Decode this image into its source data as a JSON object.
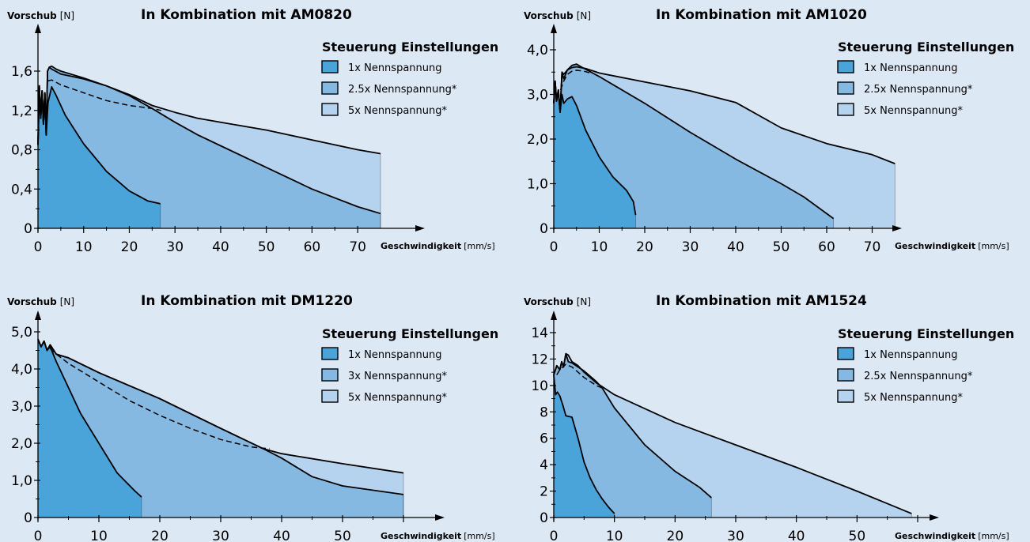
{
  "colors": {
    "background": "#dde8f5",
    "fill_1x": "#4aa3d9",
    "fill_mid": "#86b9e2",
    "fill_5x": "#b5d3ee",
    "line": "#000000"
  },
  "chart_data": [
    {
      "type": "area",
      "title": "In Kombination mit AM0820",
      "ylabel_bold": "Vorschub",
      "ylabel_unit": "[N]",
      "xlabel_bold": "Geschwindigkeit",
      "xlabel_unit": "[mm/s]",
      "xlim": [
        0,
        80
      ],
      "ylim": [
        0,
        2.0
      ],
      "xticks": [
        0,
        10,
        20,
        30,
        40,
        50,
        60,
        70
      ],
      "xtick_labels": [
        "0",
        "10",
        "20",
        "30",
        "40",
        "50",
        "60",
        "70"
      ],
      "yticks": [
        0,
        0.4,
        0.8,
        1.2,
        1.6
      ],
      "ytick_labels": [
        "0",
        "0,4",
        "0,8",
        "1,2",
        "1,6"
      ],
      "legend_title": "Steuerung Einstellungen",
      "legend_position": "top-right",
      "series": [
        {
          "name": "5x Nennspannung*",
          "style": "solid",
          "x": [
            0,
            0.3,
            0.6,
            0.9,
            1.2,
            1.5,
            1.8,
            2.1,
            2.5,
            3,
            5,
            10,
            15,
            20,
            25,
            30,
            35,
            40,
            50,
            60,
            70,
            75
          ],
          "y": [
            0.85,
            1.45,
            1.12,
            1.4,
            1.06,
            1.38,
            0.95,
            1.6,
            1.64,
            1.62,
            1.57,
            1.52,
            1.45,
            1.36,
            1.25,
            1.18,
            1.12,
            1.08,
            1.0,
            0.9,
            0.8,
            0.76
          ]
        },
        {
          "name": "2.5x Nennspannung*",
          "style": "solid",
          "x": [
            0,
            0.3,
            0.6,
            0.9,
            1.2,
            1.5,
            1.8,
            2.1,
            2.5,
            3,
            4,
            5,
            10,
            15,
            20,
            25,
            30,
            35,
            40,
            50,
            60,
            70,
            75
          ],
          "y": [
            0.85,
            1.45,
            1.12,
            1.4,
            1.06,
            1.38,
            0.95,
            1.6,
            1.64,
            1.65,
            1.62,
            1.6,
            1.53,
            1.45,
            1.35,
            1.22,
            1.08,
            0.95,
            0.84,
            0.62,
            0.4,
            0.22,
            0.15
          ]
        },
        {
          "name": "1x Nennspannung",
          "style": "solid",
          "x": [
            0,
            0.3,
            0.6,
            0.9,
            1.2,
            1.5,
            1.8,
            2.2,
            3,
            4,
            6,
            10,
            15,
            20,
            24,
            26.8
          ],
          "y": [
            0.85,
            1.45,
            1.12,
            1.4,
            1.06,
            1.38,
            0.95,
            1.28,
            1.44,
            1.35,
            1.15,
            0.86,
            0.58,
            0.38,
            0.28,
            0.25
          ]
        },
        {
          "name": "",
          "style": "dashed",
          "x": [
            2.2,
            3,
            5,
            10,
            15,
            20,
            25,
            27
          ],
          "y": [
            1.5,
            1.51,
            1.46,
            1.38,
            1.3,
            1.25,
            1.22,
            1.2
          ]
        }
      ]
    },
    {
      "type": "area",
      "title": "In Kombination mit AM1020",
      "ylabel_bold": "Vorschub",
      "ylabel_unit": "[N]",
      "xlabel_bold": "Geschwindigkeit",
      "xlabel_unit": "[mm/s]",
      "xlim": [
        0,
        75
      ],
      "ylim": [
        0,
        4.4
      ],
      "xticks": [
        0,
        10,
        20,
        30,
        40,
        50,
        60,
        70
      ],
      "xtick_labels": [
        "0",
        "10",
        "20",
        "30",
        "40",
        "50",
        "60",
        "70"
      ],
      "yticks": [
        0,
        1.0,
        2.0,
        3.0,
        4.0
      ],
      "ytick_labels": [
        "0",
        "1,0",
        "2,0",
        "3,0",
        "4,0"
      ],
      "legend_title": "Steuerung Einstellungen",
      "legend_position": "top-right",
      "series": [
        {
          "name": "5x Nennspannung*",
          "style": "solid",
          "x": [
            0,
            0.3,
            0.6,
            1,
            1.4,
            1.8,
            2.2,
            3,
            4,
            5,
            7,
            10,
            20,
            30,
            40,
            50,
            60,
            70,
            75
          ],
          "y": [
            2.8,
            3.3,
            2.85,
            3.1,
            2.6,
            3.5,
            3.45,
            3.55,
            3.6,
            3.62,
            3.58,
            3.48,
            3.28,
            3.08,
            2.82,
            2.25,
            1.9,
            1.65,
            1.45
          ]
        },
        {
          "name": "2.5x Nennspannung*",
          "style": "solid",
          "x": [
            0,
            0.3,
            0.6,
            1,
            1.4,
            1.8,
            2.2,
            3,
            4,
            5,
            6,
            10,
            20,
            30,
            40,
            50,
            55,
            61.5
          ],
          "y": [
            2.8,
            3.3,
            2.85,
            3.1,
            2.6,
            3.5,
            3.35,
            3.55,
            3.65,
            3.68,
            3.62,
            3.4,
            2.8,
            2.15,
            1.55,
            1.0,
            0.7,
            0.22
          ]
        },
        {
          "name": "1x Nennspannung",
          "style": "solid",
          "x": [
            0,
            0.3,
            0.6,
            1,
            1.4,
            1.8,
            2.2,
            3,
            4,
            5,
            7,
            10,
            13,
            16,
            17.5,
            18
          ],
          "y": [
            2.8,
            3.3,
            2.85,
            3.1,
            2.6,
            3.0,
            2.8,
            2.9,
            2.95,
            2.75,
            2.2,
            1.6,
            1.15,
            0.85,
            0.6,
            0.3
          ]
        },
        {
          "name": "",
          "style": "dashed",
          "x": [
            1.5,
            2.2,
            3,
            4,
            5,
            6,
            7,
            8
          ],
          "y": [
            3.1,
            3.3,
            3.45,
            3.52,
            3.54,
            3.53,
            3.51,
            3.48
          ]
        }
      ]
    },
    {
      "type": "area",
      "title": "In Kombination mit DM1220",
      "ylabel_bold": "Vorschub",
      "ylabel_unit": "[N]",
      "xlabel_bold": "Geschwindigkeit",
      "xlabel_unit": "[mm/s]",
      "xlim": [
        0,
        65
      ],
      "ylim": [
        0,
        5.6
      ],
      "xticks": [
        0,
        10,
        20,
        30,
        40,
        50,
        60
      ],
      "xtick_labels": [
        "0",
        "10",
        "20",
        "30",
        "40",
        "50",
        ""
      ],
      "yticks": [
        0,
        1.0,
        2.0,
        3.0,
        4.0,
        5.0
      ],
      "ytick_labels": [
        "0",
        "1,0",
        "2,0",
        "3,0",
        "4,0",
        "5,0"
      ],
      "legend_title": "Steuerung Einstellungen",
      "legend_position": "top-right",
      "series": [
        {
          "name": "5x Nennspannung*",
          "style": "solid",
          "x": [
            0,
            0.5,
            1,
            1.5,
            2,
            3,
            4,
            5,
            10,
            20,
            30,
            37,
            40,
            50,
            60
          ],
          "y": [
            4.8,
            4.6,
            4.75,
            4.5,
            4.65,
            4.4,
            4.35,
            4.3,
            3.9,
            3.2,
            2.4,
            1.85,
            1.72,
            1.45,
            1.2
          ]
        },
        {
          "name": "3x Nennspannung*",
          "style": "solid",
          "x": [
            0,
            0.5,
            1,
            1.5,
            2,
            3,
            4,
            5,
            10,
            20,
            30,
            37,
            40,
            45,
            50,
            60
          ],
          "y": [
            4.8,
            4.6,
            4.75,
            4.5,
            4.65,
            4.4,
            4.35,
            4.3,
            3.9,
            3.2,
            2.4,
            1.85,
            1.6,
            1.1,
            0.85,
            0.62
          ]
        },
        {
          "name": "1x Nennspannung",
          "style": "solid",
          "x": [
            0,
            0.5,
            1,
            1.5,
            2,
            3,
            5,
            7,
            10,
            13,
            16,
            17
          ],
          "y": [
            4.8,
            4.6,
            4.75,
            4.5,
            4.6,
            4.2,
            3.5,
            2.8,
            2.0,
            1.2,
            0.7,
            0.55
          ]
        },
        {
          "name": "",
          "style": "dashed",
          "x": [
            2,
            3,
            5,
            10,
            15,
            20,
            25,
            30,
            35,
            38
          ],
          "y": [
            4.55,
            4.4,
            4.15,
            3.65,
            3.15,
            2.75,
            2.4,
            2.1,
            1.9,
            1.85
          ]
        }
      ]
    },
    {
      "type": "area",
      "title": "In Kombination mit AM1524",
      "ylabel_bold": "Vorschub",
      "ylabel_unit": "[N]",
      "xlabel_bold": "Geschwindigkeit",
      "xlabel_unit": "[mm/s]",
      "xlim": [
        0,
        63
      ],
      "ylim": [
        0,
        15.2
      ],
      "xticks": [
        0,
        10,
        20,
        30,
        40,
        50,
        60
      ],
      "xtick_labels": [
        "0",
        "10",
        "20",
        "30",
        "40",
        "50",
        ""
      ],
      "yticks": [
        0,
        2,
        4,
        6,
        8,
        10,
        12,
        14
      ],
      "ytick_labels": [
        "0",
        "2",
        "4",
        "6",
        "8",
        "10",
        "12",
        "14"
      ],
      "legend_title": "Steuerung Einstellungen",
      "legend_position": "top-right",
      "series": [
        {
          "name": "5x Nennspannung*",
          "style": "solid",
          "x": [
            0,
            0.5,
            1,
            1.3,
            1.6,
            2,
            2.4,
            3,
            4,
            5,
            7,
            10,
            20,
            30,
            40,
            50,
            59
          ],
          "y": [
            10.8,
            11.5,
            11.2,
            11.8,
            11.4,
            12.4,
            12.3,
            11.8,
            11.5,
            11.0,
            10.2,
            9.3,
            7.2,
            5.5,
            3.8,
            2.0,
            0.3
          ]
        },
        {
          "name": "2.5x Nennspannung*",
          "style": "solid",
          "x": [
            0,
            0.5,
            1,
            1.3,
            1.6,
            2,
            2.4,
            3,
            4,
            5,
            6,
            7,
            8,
            10,
            15,
            20,
            24,
            26
          ],
          "y": [
            10.8,
            11.5,
            11.2,
            11.8,
            11.4,
            12.4,
            11.8,
            11.7,
            11.4,
            11.1,
            10.7,
            10.3,
            9.8,
            8.3,
            5.5,
            3.5,
            2.3,
            1.5
          ]
        },
        {
          "name": "1x Nennspannung",
          "style": "solid",
          "x": [
            0,
            0.3,
            0.6,
            1,
            1.5,
            2,
            3,
            4,
            5,
            6,
            7,
            8,
            9,
            10
          ],
          "y": [
            10.8,
            9.3,
            9.5,
            9.2,
            8.5,
            7.7,
            7.6,
            6.0,
            4.2,
            3.0,
            2.1,
            1.4,
            0.8,
            0.3
          ]
        },
        {
          "name": "",
          "style": "dashed",
          "x": [
            0.5,
            1,
            2,
            3,
            4,
            5,
            6,
            7,
            8
          ],
          "y": [
            10.8,
            11.2,
            11.6,
            11.4,
            11.0,
            10.6,
            10.3,
            10.0,
            9.8
          ]
        }
      ]
    }
  ]
}
